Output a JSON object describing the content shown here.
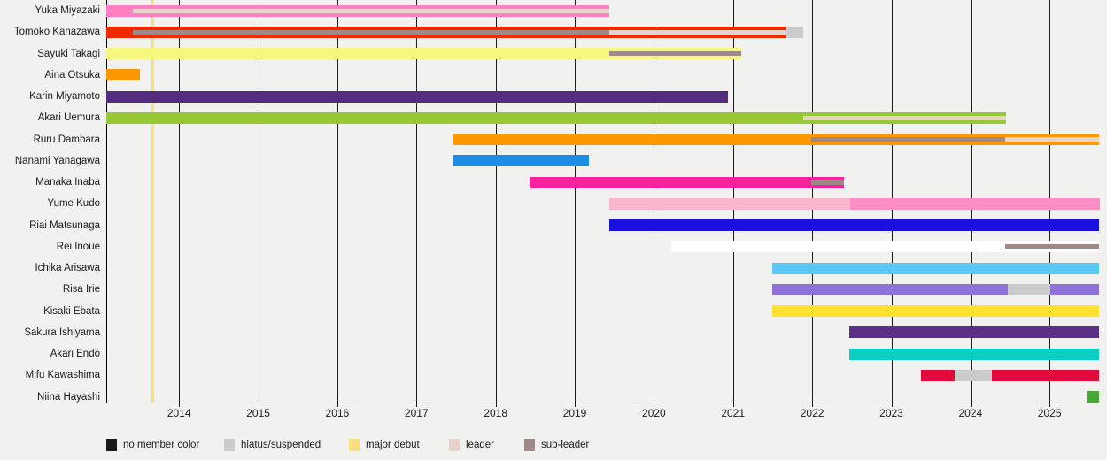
{
  "chart_data": {
    "type": "timeline",
    "title": "",
    "x_axis": {
      "start_year_decimal": 2013.08,
      "end_year_decimal": 2025.63,
      "ticks": [
        2014,
        2015,
        2016,
        2017,
        2018,
        2019,
        2020,
        2021,
        2022,
        2023,
        2024,
        2025
      ]
    },
    "status_colors": {
      "no_member": "#1a1a1a",
      "hiatus": "#cbcbcb",
      "major_debut": "#fbdf7e",
      "leader": "#e8d3ca",
      "sub_leader": "#a18888"
    },
    "events": [
      {
        "label": "major debut",
        "year": 2013.67,
        "color": "#fbdf7e"
      }
    ],
    "members": [
      {
        "name": "Yuka Miyazaki",
        "segments": [
          {
            "from": 2013.08,
            "to": 2019.44,
            "color": "#ff7fc2"
          }
        ],
        "overlays": [
          {
            "type": "leader",
            "from": 2013.42,
            "to": 2019.44
          }
        ]
      },
      {
        "name": "Tomoko Kanazawa",
        "segments": [
          {
            "from": 2013.08,
            "to": 2021.67,
            "color": "#ee2b00"
          },
          {
            "from": 2021.67,
            "to": 2021.89,
            "color": "#cbcbcb"
          }
        ],
        "overlays": [
          {
            "type": "sub_leader",
            "from": 2013.42,
            "to": 2019.44
          },
          {
            "type": "leader",
            "from": 2019.44,
            "to": 2021.67
          }
        ]
      },
      {
        "name": "Sayuki Takagi",
        "segments": [
          {
            "from": 2013.08,
            "to": 2021.1,
            "color": "#f7f77d"
          }
        ],
        "overlays": [
          {
            "type": "sub_leader",
            "from": 2019.44,
            "to": 2021.1
          }
        ]
      },
      {
        "name": "Aina Otsuka",
        "segments": [
          {
            "from": 2013.08,
            "to": 2013.5,
            "color": "#ff9800"
          }
        ],
        "overlays": []
      },
      {
        "name": "Karin Miyamoto",
        "segments": [
          {
            "from": 2013.08,
            "to": 2020.94,
            "color": "#552b80"
          }
        ],
        "overlays": []
      },
      {
        "name": "Akari Uemura",
        "segments": [
          {
            "from": 2013.08,
            "to": 2024.45,
            "color": "#98c835"
          }
        ],
        "overlays": [
          {
            "type": "leader",
            "from": 2021.89,
            "to": 2024.45
          }
        ]
      },
      {
        "name": "Ruru Dambara",
        "segments": [
          {
            "from": 2017.47,
            "to": 2025.63,
            "color": "#ff9800"
          }
        ],
        "overlays": [
          {
            "type": "sub_leader",
            "from": 2021.99,
            "to": 2024.44
          },
          {
            "type": "leader",
            "from": 2024.44,
            "to": 2025.63
          }
        ]
      },
      {
        "name": "Nanami Yanagawa",
        "segments": [
          {
            "from": 2017.47,
            "to": 2019.18,
            "color": "#1d8ce4"
          }
        ],
        "overlays": []
      },
      {
        "name": "Manaka Inaba",
        "segments": [
          {
            "from": 2018.43,
            "to": 2022.4,
            "color": "#fa219c"
          }
        ],
        "overlays": [
          {
            "type": "sub_leader",
            "from": 2021.99,
            "to": 2022.4
          }
        ]
      },
      {
        "name": "Yume Kudo",
        "segments": [
          {
            "from": 2019.44,
            "to": 2022.48,
            "color": "#f7b6ca"
          },
          {
            "from": 2022.48,
            "to": 2025.63,
            "color": "#fb8dc5"
          }
        ],
        "overlays": []
      },
      {
        "name": "Riai Matsunaga",
        "segments": [
          {
            "from": 2019.44,
            "to": 2025.63,
            "color": "#1a10e0"
          }
        ],
        "overlays": []
      },
      {
        "name": "Rei Inoue",
        "segments": [
          {
            "from": 2020.22,
            "to": 2025.63,
            "color": "#ffffff"
          }
        ],
        "overlays": [
          {
            "type": "sub_leader",
            "from": 2024.44,
            "to": 2025.63
          }
        ]
      },
      {
        "name": "Ichika Arisawa",
        "segments": [
          {
            "from": 2021.5,
            "to": 2025.63,
            "color": "#5ac8f5"
          }
        ],
        "overlays": []
      },
      {
        "name": "Risa Irie",
        "segments": [
          {
            "from": 2021.5,
            "to": 2024.47,
            "color": "#8f72d9"
          },
          {
            "from": 2024.47,
            "to": 2025.01,
            "color": "#cbcbcb"
          },
          {
            "from": 2025.01,
            "to": 2025.63,
            "color": "#8f72d9"
          }
        ],
        "overlays": []
      },
      {
        "name": "Kisaki Ebata",
        "segments": [
          {
            "from": 2021.5,
            "to": 2025.63,
            "color": "#ffe22e"
          }
        ],
        "overlays": []
      },
      {
        "name": "Sakura Ishiyama",
        "segments": [
          {
            "from": 2022.47,
            "to": 2025.63,
            "color": "#5a3184"
          }
        ],
        "overlays": []
      },
      {
        "name": "Akari Endo",
        "segments": [
          {
            "from": 2022.47,
            "to": 2025.63,
            "color": "#0acfc3"
          }
        ],
        "overlays": []
      },
      {
        "name": "Mifu Kawashima",
        "segments": [
          {
            "from": 2023.37,
            "to": 2023.8,
            "color": "#e2093b"
          },
          {
            "from": 2023.8,
            "to": 2024.27,
            "color": "#cbcbcb"
          },
          {
            "from": 2024.27,
            "to": 2025.63,
            "color": "#e2093b"
          }
        ],
        "overlays": []
      },
      {
        "name": "Niina Hayashi",
        "segments": [
          {
            "from": 2025.47,
            "to": 2025.63,
            "color": "#47a837"
          }
        ],
        "overlays": []
      }
    ],
    "legend_items": [
      {
        "label": "no member color",
        "color": "#1a1a1a"
      },
      {
        "label": "hiatus/suspended",
        "color": "#cbcbcb"
      },
      {
        "label": "major debut",
        "color": "#fbdf7e"
      },
      {
        "label": "leader",
        "color": "#e8d3ca"
      },
      {
        "label": "sub-leader",
        "color": "#a18888"
      }
    ]
  }
}
